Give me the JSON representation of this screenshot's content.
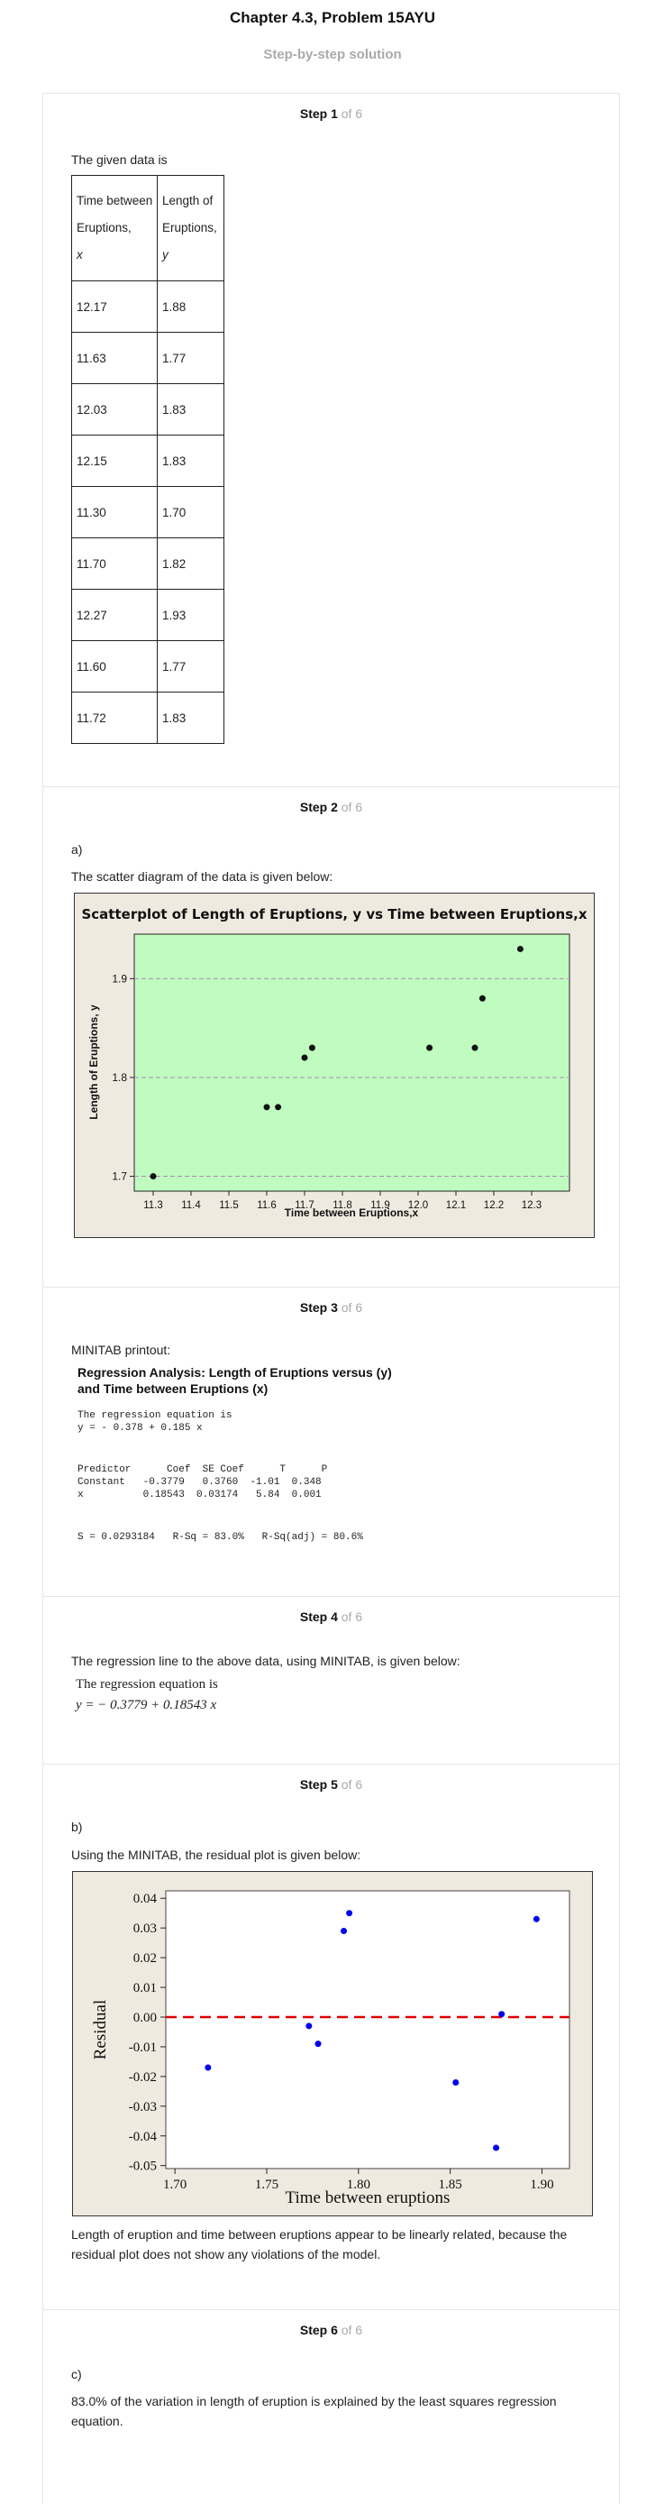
{
  "header": {
    "title": "Chapter 4.3, Problem 15AYU",
    "subtitle": "Step-by-step solution"
  },
  "steps": [
    {
      "label": "Step 1",
      "of": "of 6"
    },
    {
      "label": "Step 2",
      "of": "of 6"
    },
    {
      "label": "Step 3",
      "of": "of 6"
    },
    {
      "label": "Step 4",
      "of": "of 6"
    },
    {
      "label": "Step 5",
      "of": "of 6"
    },
    {
      "label": "Step 6",
      "of": "of 6"
    }
  ],
  "step1": {
    "intro": "The given data is",
    "table": {
      "header_x": [
        "Time between",
        "Eruptions,",
        "x"
      ],
      "header_y": [
        "Length of",
        "Eruptions,",
        "y"
      ],
      "rows": [
        [
          "12.17",
          "1.88"
        ],
        [
          "11.63",
          "1.77"
        ],
        [
          "12.03",
          "1.83"
        ],
        [
          "12.15",
          "1.83"
        ],
        [
          "11.30",
          "1.70"
        ],
        [
          "11.70",
          "1.82"
        ],
        [
          "12.27",
          "1.93"
        ],
        [
          "11.60",
          "1.77"
        ],
        [
          "11.72",
          "1.83"
        ]
      ]
    }
  },
  "step2": {
    "part": "a)",
    "text": "The scatter diagram of the data is given below:"
  },
  "step3": {
    "intro": "MINITAB printout:",
    "title_line1": "Regression Analysis: Length of Eruptions versus (y)",
    "title_line2": "and Time between Eruptions (x)",
    "eq_label": "The regression equation is",
    "eq": "y = - 0.378 + 0.185 x",
    "table_header": "Predictor      Coef  SE Coef      T      P",
    "table_row1": "Constant   -0.3779   0.3760  -1.01  0.348",
    "table_row2": "x          0.18543  0.03174   5.84  0.001",
    "summary": "S = 0.0293184   R-Sq = 83.0%   R-Sq(adj) = 80.6%"
  },
  "step4": {
    "text": "The regression line to the above data, using MINITAB, is given below:",
    "eq_label": "The regression equation is",
    "eq": "y = − 0.3779 + 0.18543 x"
  },
  "step5": {
    "part": "b)",
    "text": "Using the MINITAB, the residual plot is given below:",
    "conclusion": "Length of eruption and time between eruptions appear to be linearly related, because the residual plot does not show any violations of the model."
  },
  "step6": {
    "part": "c)",
    "text": "83.0% of the variation in length of eruption is explained by the least squares regression equation."
  },
  "chart_data": [
    {
      "type": "scatter",
      "title": "Scatterplot of Length of Eruptions, y vs Time between Eruptions,x",
      "xlabel": "Time between Eruptions,x",
      "ylabel": "Length of Eruptions, y",
      "xlim": [
        11.25,
        12.4
      ],
      "ylim": [
        1.685,
        1.945
      ],
      "xticks": [
        "11.3",
        "11.4",
        "11.5",
        "11.6",
        "11.7",
        "11.8",
        "11.9",
        "12.0",
        "12.1",
        "12.2",
        "12.3"
      ],
      "yticks": [
        "1.7",
        "1.8",
        "1.9"
      ],
      "grid": "horizontal dashed at y ticks",
      "background": "#c0fcc0",
      "frame_color": "#efeae0",
      "x": [
        12.17,
        11.63,
        12.03,
        12.15,
        11.3,
        11.7,
        12.27,
        11.6,
        11.72
      ],
      "y": [
        1.88,
        1.77,
        1.83,
        1.83,
        1.7,
        1.82,
        1.93,
        1.77,
        1.83
      ]
    },
    {
      "type": "scatter",
      "title": "",
      "xlabel": "Time between eruptions",
      "ylabel": "Residual",
      "xlim": [
        1.695,
        1.915
      ],
      "ylim": [
        -0.051,
        0.0425
      ],
      "xticks": [
        "1.70",
        "1.75",
        "1.80",
        "1.85",
        "1.90"
      ],
      "yticks": [
        "-0.05",
        "-0.04",
        "-0.03",
        "-0.02",
        "-0.01",
        "0.00",
        "0.01",
        "0.02",
        "0.03",
        "0.04"
      ],
      "reference_line": {
        "y": 0,
        "style": "dashed",
        "color": "#e00000"
      },
      "point_color": "#0000ee",
      "frame_color": "#efeae0",
      "x": [
        1.718,
        1.773,
        1.778,
        1.792,
        1.795,
        1.853,
        1.875,
        1.878,
        1.897
      ],
      "y": [
        -0.017,
        -0.003,
        -0.009,
        0.029,
        0.035,
        -0.022,
        -0.044,
        0.001,
        0.033
      ]
    }
  ]
}
